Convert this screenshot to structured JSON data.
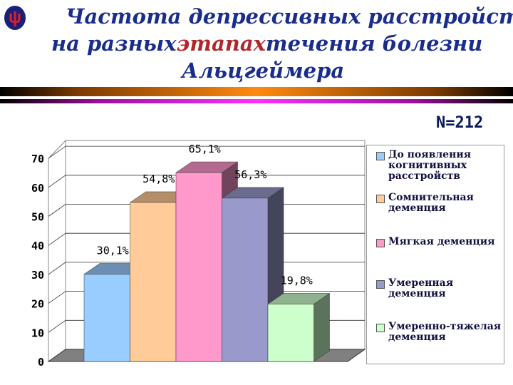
{
  "title": {
    "line1": "Частота депрессивных расстройств",
    "line2_pre": "на разных",
    "line2_highlight": "этапах",
    "line2_post": "течения болезни",
    "line3": "Альцгеймера"
  },
  "logo": {
    "icon": "psi-icon"
  },
  "sample_size": "N=212",
  "chart_data": {
    "type": "bar",
    "style": "3d",
    "categories": [
      "До появления когнитивных расстройств",
      "Сомнительная деменция",
      "Мягкая деменция",
      "Умеренная деменция",
      "Умеренно-тяжелая деменция"
    ],
    "values": [
      30.1,
      54.8,
      65.1,
      56.3,
      19.8
    ],
    "data_labels": [
      "30,1%",
      "54,8%",
      "65,1%",
      "56,3%",
      "19,8%"
    ],
    "colors": [
      "#99ccff",
      "#ffcc99",
      "#ff99cc",
      "#9999cc",
      "#ccffcc"
    ],
    "ylim": [
      0,
      70
    ],
    "yticks": [
      "0",
      "10",
      "20",
      "30",
      "40",
      "50",
      "60",
      "70"
    ],
    "grid": true,
    "legend": "right"
  }
}
